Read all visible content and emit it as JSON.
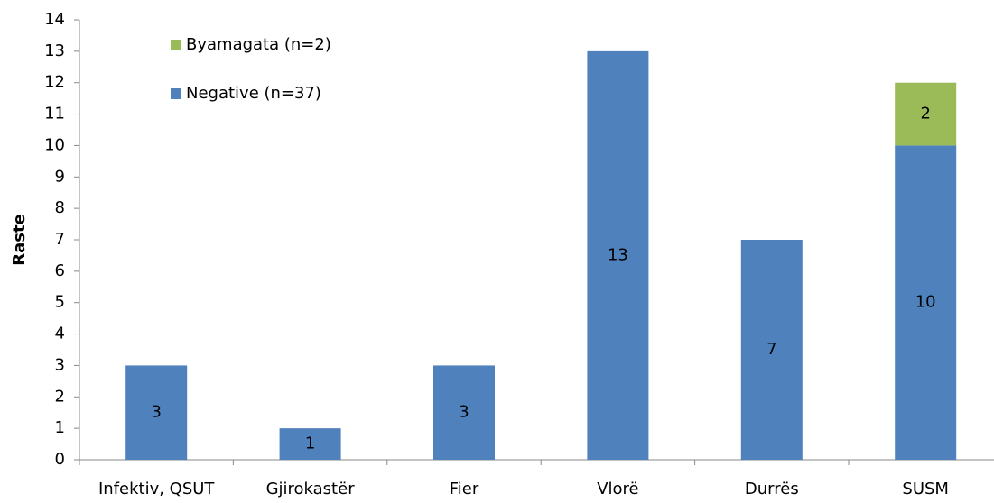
{
  "chart_data": {
    "type": "stacked_bar",
    "y_label": "Raste",
    "categories": [
      "Infektiv, QSUT",
      "Gjirokastër",
      "Fier",
      "Vlorë",
      "Durrës",
      "SUSM"
    ],
    "series": [
      {
        "name": "Negative (n=37)",
        "color": "#4f81bd",
        "values": [
          3,
          1,
          3,
          13,
          7,
          10
        ]
      },
      {
        "name": "Byamagata (n=2)",
        "color": "#9bbb59",
        "values": [
          0,
          0,
          0,
          0,
          0,
          2
        ]
      }
    ],
    "ylim": [
      0,
      14
    ],
    "yticks": [
      0,
      1,
      2,
      3,
      4,
      5,
      6,
      7,
      8,
      9,
      10,
      11,
      12,
      13,
      14
    ],
    "grid": false,
    "legend": "top-left"
  }
}
